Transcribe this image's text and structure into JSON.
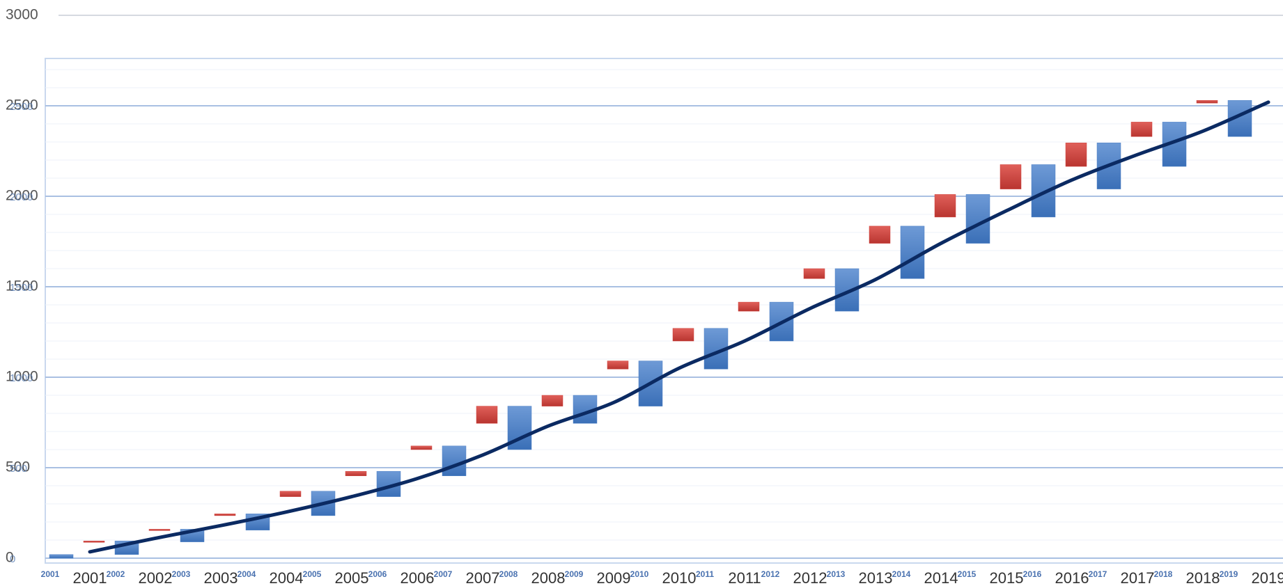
{
  "chart_data": {
    "type": "waterfall",
    "categories": [
      "2001",
      "2002",
      "2003",
      "2004",
      "2005",
      "2006",
      "2007",
      "2008",
      "2009",
      "2010",
      "2011",
      "2012",
      "2013",
      "2014",
      "2015",
      "2016",
      "2017",
      "2018",
      "2019"
    ],
    "increase": [
      20,
      75,
      70,
      90,
      135,
      140,
      165,
      240,
      155,
      250,
      225,
      215,
      235,
      290,
      270,
      290,
      255,
      245,
      200
    ],
    "decrease": [
      null,
      -5,
      -5,
      -10,
      -30,
      -25,
      -20,
      -95,
      -60,
      -45,
      -70,
      -50,
      -55,
      -95,
      -125,
      -135,
      -130,
      -80,
      -15
    ],
    "increase_color": "#4a7fc4",
    "decrease_color": "#cf413b",
    "line": [
      35,
      110,
      180,
      255,
      340,
      440,
      570,
      730,
      860,
      1050,
      1200,
      1380,
      1540,
      1740,
      1920,
      2090,
      2230,
      2360,
      2520
    ],
    "line_color": "#0b2a62",
    "ylim": [
      0,
      3000
    ],
    "yticks": [
      0,
      500,
      1000,
      1500,
      2000,
      2500,
      3000
    ],
    "grid": true
  }
}
